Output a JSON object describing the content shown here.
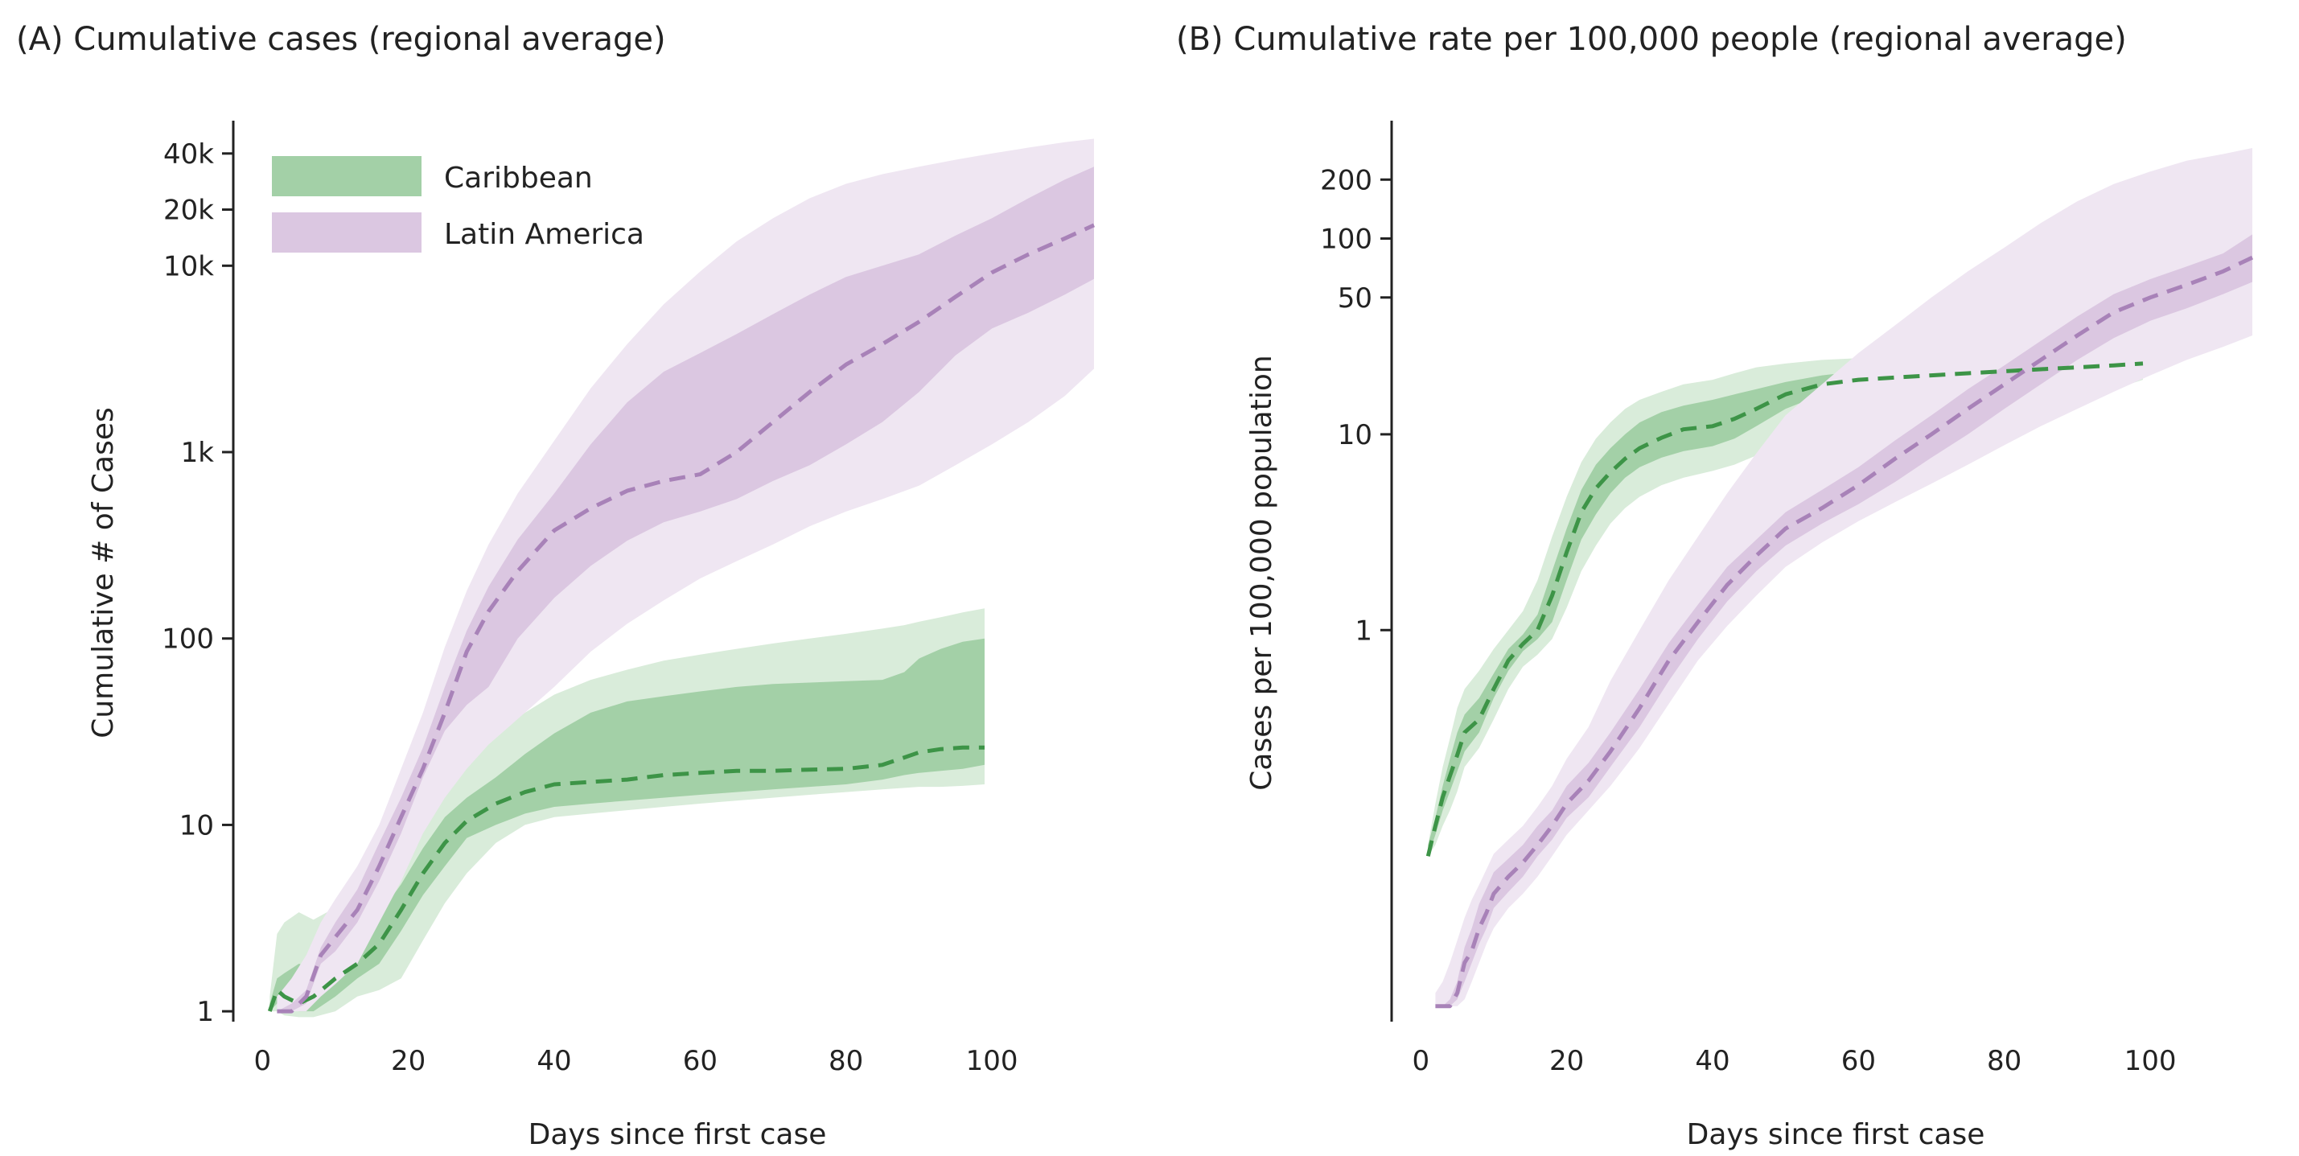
{
  "chart_data": [
    {
      "type": "area",
      "title": "(A) Cumulative cases (regional average)",
      "xlabel": "Days since first case",
      "ylabel": "Cumulative # of Cases",
      "xlim": [
        -4,
        114
      ],
      "ylim": [
        0.88,
        60000
      ],
      "yscale": "log",
      "grid": false,
      "legend_position": "top-left",
      "x_ticks": [
        0,
        20,
        40,
        60,
        80,
        100
      ],
      "y_ticks": [
        1,
        10,
        100,
        1000,
        10000,
        20000,
        40000
      ],
      "y_tick_labels": [
        "1",
        "10",
        "100",
        "1k",
        "10k",
        "20k",
        "40k"
      ],
      "legend": [
        {
          "label": "Caribbean",
          "color": "#a3d0a7"
        },
        {
          "label": "Latin America",
          "color": "#dbc7e1"
        }
      ],
      "series": [
        {
          "name": "Caribbean",
          "color": "#3d9447",
          "inner_color": "#a3d0a7",
          "outer_color": "#d9ecda",
          "x": [
            1,
            2,
            3,
            5,
            7,
            10,
            13,
            16,
            19,
            22,
            25,
            28,
            32,
            36,
            40,
            45,
            50,
            55,
            60,
            65,
            70,
            75,
            80,
            85,
            88,
            90,
            93,
            96,
            99
          ],
          "mean": [
            1,
            1.3,
            1.2,
            1.1,
            1.2,
            1.5,
            1.8,
            2.3,
            3.5,
            5.5,
            8,
            10.5,
            13,
            15,
            16.5,
            17,
            17.5,
            18.5,
            19,
            19.5,
            19.5,
            19.8,
            20,
            21,
            23,
            24.5,
            25.5,
            26,
            26
          ],
          "lower": [
            1,
            1.1,
            1.05,
            1.0,
            1.0,
            1.2,
            1.5,
            1.8,
            2.7,
            4.2,
            6,
            8.5,
            10,
            11.5,
            12.5,
            13,
            13.5,
            14,
            14.5,
            15,
            15.5,
            16,
            16.5,
            17.5,
            18.5,
            19,
            19.5,
            20,
            21
          ],
          "upper": [
            1.1,
            1.5,
            1.6,
            1.8,
            1.7,
            2.2,
            2.6,
            3.3,
            4.8,
            7.5,
            11,
            14,
            18,
            24,
            31,
            40,
            46,
            49,
            52,
            55,
            57,
            58,
            59,
            60,
            66,
            78,
            88,
            96,
            100
          ],
          "lower_outer": [
            1,
            1.0,
            0.95,
            0.93,
            0.93,
            1.0,
            1.2,
            1.3,
            1.5,
            2.4,
            3.8,
            5.5,
            8,
            10,
            11,
            11.5,
            12,
            12.5,
            13,
            13.5,
            14,
            14.5,
            15,
            15.5,
            15.8,
            16,
            16,
            16.2,
            16.5
          ],
          "upper_outer": [
            1.2,
            2.6,
            3.0,
            3.4,
            3.1,
            3.6,
            4.2,
            5.2,
            7,
            11,
            16,
            23,
            31,
            40,
            50,
            60,
            68,
            76,
            82,
            88,
            94,
            100,
            106,
            113,
            118,
            123,
            130,
            138,
            145
          ]
        },
        {
          "name": "Latin America",
          "color": "#a882b8",
          "inner_color": "#dbc7e1",
          "outer_color": "#efe6f2",
          "x": [
            2,
            4,
            6,
            8,
            10,
            13,
            16,
            19,
            22,
            25,
            28,
            31,
            35,
            40,
            45,
            50,
            55,
            60,
            65,
            70,
            75,
            80,
            85,
            90,
            95,
            100,
            105,
            110,
            114
          ],
          "mean": [
            1,
            1,
            1.2,
            2,
            2.5,
            3.5,
            6,
            11,
            20,
            40,
            85,
            140,
            230,
            380,
            500,
            620,
            700,
            760,
            1000,
            1450,
            2100,
            2950,
            3800,
            5000,
            6800,
            9200,
            11500,
            14000,
            16500
          ],
          "lower": [
            1,
            1,
            1.1,
            1.8,
            2.1,
            3,
            5,
            9,
            18,
            32,
            44,
            55,
            100,
            165,
            245,
            335,
            420,
            480,
            560,
            700,
            850,
            1100,
            1450,
            2100,
            3300,
            4600,
            5600,
            7000,
            8500
          ],
          "upper": [
            1,
            1.1,
            1.3,
            2.2,
            3,
            4.5,
            8,
            14,
            26,
            55,
            110,
            190,
            340,
            600,
            1100,
            1850,
            2700,
            3400,
            4300,
            5500,
            7000,
            8700,
            10000,
            11500,
            14500,
            18000,
            23000,
            29000,
            34000
          ],
          "lower_outer": [
            1,
            1,
            1.0,
            1.2,
            1.4,
            1.8,
            3,
            5,
            9,
            14,
            20,
            27,
            37,
            55,
            85,
            120,
            160,
            210,
            260,
            320,
            400,
            480,
            560,
            660,
            850,
            1100,
            1450,
            2000,
            2800
          ],
          "upper_outer": [
            1.2,
            1.5,
            2,
            3,
            4,
            6,
            10,
            20,
            40,
            90,
            180,
            320,
            600,
            1150,
            2200,
            3800,
            6200,
            9300,
            13500,
            18000,
            23000,
            27500,
            31000,
            34000,
            37000,
            40000,
            43000,
            46000,
            48000
          ]
        }
      ]
    },
    {
      "type": "area",
      "title": "(B) Cumulative rate per 100,000 people (regional average)",
      "xlabel": "Days since first case",
      "ylabel": "Cases per 100,000 population",
      "xlim": [
        -4,
        114
      ],
      "ylim": [
        0.01,
        400
      ],
      "yscale": "log",
      "grid": false,
      "x_ticks": [
        0,
        20,
        40,
        60,
        80,
        100
      ],
      "y_ticks": [
        1,
        10,
        50,
        100,
        200
      ],
      "y_tick_labels": [
        "1",
        "10",
        "50",
        "100",
        "200"
      ],
      "series": [
        {
          "name": "Caribbean",
          "color": "#3d9447",
          "inner_color": "#a3d0a7",
          "outer_color": "#d9ecda",
          "x": [
            1,
            2,
            3,
            4,
            5,
            6,
            8,
            10,
            12,
            14,
            16,
            18,
            20,
            22,
            24,
            26,
            28,
            30,
            33,
            36,
            40,
            43,
            46,
            50,
            55,
            60,
            65,
            70,
            75,
            80,
            85,
            90,
            95,
            99
          ],
          "mean": [
            0.07,
            0.1,
            0.14,
            0.18,
            0.23,
            0.3,
            0.35,
            0.5,
            0.7,
            0.85,
            1.0,
            1.5,
            2.5,
            4,
            5.3,
            6.4,
            7.5,
            8.5,
            9.6,
            10.6,
            11,
            12,
            13.5,
            16,
            18,
            19,
            19.5,
            20,
            20.5,
            21,
            21.5,
            22,
            22.5,
            23
          ],
          "lower": [
            0.07,
            0.09,
            0.12,
            0.15,
            0.19,
            0.24,
            0.3,
            0.45,
            0.62,
            0.78,
            0.9,
            1.1,
            1.8,
            2.9,
            3.9,
            5.0,
            6.0,
            6.8,
            7.6,
            8.2,
            8.7,
            9.5,
            11,
            13.5,
            16,
            18,
            19,
            19.5,
            20,
            20.5,
            21,
            21.5,
            22,
            22.5
          ],
          "upper": [
            0.08,
            0.11,
            0.16,
            0.22,
            0.3,
            0.37,
            0.45,
            0.6,
            0.8,
            0.95,
            1.2,
            2.0,
            3.3,
            5.2,
            7.0,
            8.5,
            10,
            11.5,
            13,
            14,
            15,
            16,
            17,
            18.5,
            20,
            21,
            21.5,
            22,
            22.5,
            23,
            23.5,
            24,
            24.5,
            25
          ],
          "lower_outer": [
            0.07,
            0.08,
            0.1,
            0.12,
            0.15,
            0.2,
            0.25,
            0.35,
            0.5,
            0.65,
            0.75,
            0.9,
            1.3,
            2,
            2.7,
            3.5,
            4.2,
            4.8,
            5.5,
            6,
            6.5,
            7,
            7.8,
            8.5,
            9.2,
            9.8,
            10.5,
            11,
            12,
            13,
            14,
            15.5,
            17,
            19
          ],
          "upper_outer": [
            0.08,
            0.13,
            0.2,
            0.28,
            0.4,
            0.5,
            0.62,
            0.8,
            1.0,
            1.25,
            1.8,
            3,
            4.8,
            7.2,
            9.5,
            11.5,
            13.5,
            15,
            16.5,
            18,
            19,
            20.5,
            22,
            23,
            24,
            24.5,
            24.8,
            25,
            25,
            25,
            25.2,
            25.5,
            26,
            26
          ]
        },
        {
          "name": "Latin America",
          "color": "#a882b8",
          "inner_color": "#dbc7e1",
          "outer_color": "#efe6f2",
          "x": [
            2,
            3,
            4,
            5,
            6,
            7,
            8,
            9,
            10,
            12,
            14,
            16,
            18,
            20,
            23,
            26,
            30,
            34,
            38,
            42,
            46,
            50,
            55,
            60,
            65,
            70,
            75,
            80,
            85,
            90,
            95,
            100,
            105,
            110,
            114
          ],
          "mean": [
            0.012,
            0.012,
            0.012,
            0.014,
            0.02,
            0.023,
            0.03,
            0.036,
            0.045,
            0.055,
            0.065,
            0.08,
            0.1,
            0.13,
            0.17,
            0.24,
            0.4,
            0.7,
            1.1,
            1.7,
            2.4,
            3.3,
            4.2,
            5.5,
            7.5,
            10,
            13.5,
            18,
            24,
            32,
            42,
            50,
            58,
            68,
            80
          ],
          "lower": [
            0.012,
            0.012,
            0.012,
            0.013,
            0.016,
            0.02,
            0.025,
            0.03,
            0.038,
            0.046,
            0.055,
            0.07,
            0.085,
            0.11,
            0.14,
            0.2,
            0.32,
            0.55,
            0.9,
            1.4,
            2.0,
            2.7,
            3.5,
            4.4,
            5.7,
            7.6,
            10,
            13.5,
            18,
            24,
            31,
            38,
            44,
            52,
            60
          ],
          "upper": [
            0.012,
            0.012,
            0.013,
            0.016,
            0.024,
            0.03,
            0.04,
            0.048,
            0.058,
            0.068,
            0.08,
            0.1,
            0.12,
            0.16,
            0.21,
            0.3,
            0.5,
            0.86,
            1.35,
            2.1,
            2.9,
            4.0,
            5.2,
            6.8,
            9.3,
            12.5,
            17,
            22.5,
            30,
            40,
            52,
            62,
            72,
            84,
            105
          ],
          "lower_outer": [
            0.012,
            0.012,
            0.012,
            0.012,
            0.013,
            0.016,
            0.02,
            0.025,
            0.03,
            0.038,
            0.045,
            0.055,
            0.07,
            0.09,
            0.12,
            0.16,
            0.25,
            0.42,
            0.7,
            1.05,
            1.5,
            2.1,
            2.8,
            3.6,
            4.5,
            5.6,
            7,
            8.8,
            11,
            13.5,
            16.5,
            20,
            24,
            28,
            32
          ],
          "upper_outer": [
            0.014,
            0.016,
            0.02,
            0.026,
            0.034,
            0.042,
            0.05,
            0.06,
            0.072,
            0.085,
            0.1,
            0.125,
            0.16,
            0.22,
            0.32,
            0.55,
            1.0,
            1.8,
            3.0,
            5.0,
            8.0,
            12.5,
            18,
            26,
            36,
            50,
            68,
            90,
            120,
            155,
            190,
            220,
            250,
            270,
            290
          ]
        }
      ]
    }
  ]
}
